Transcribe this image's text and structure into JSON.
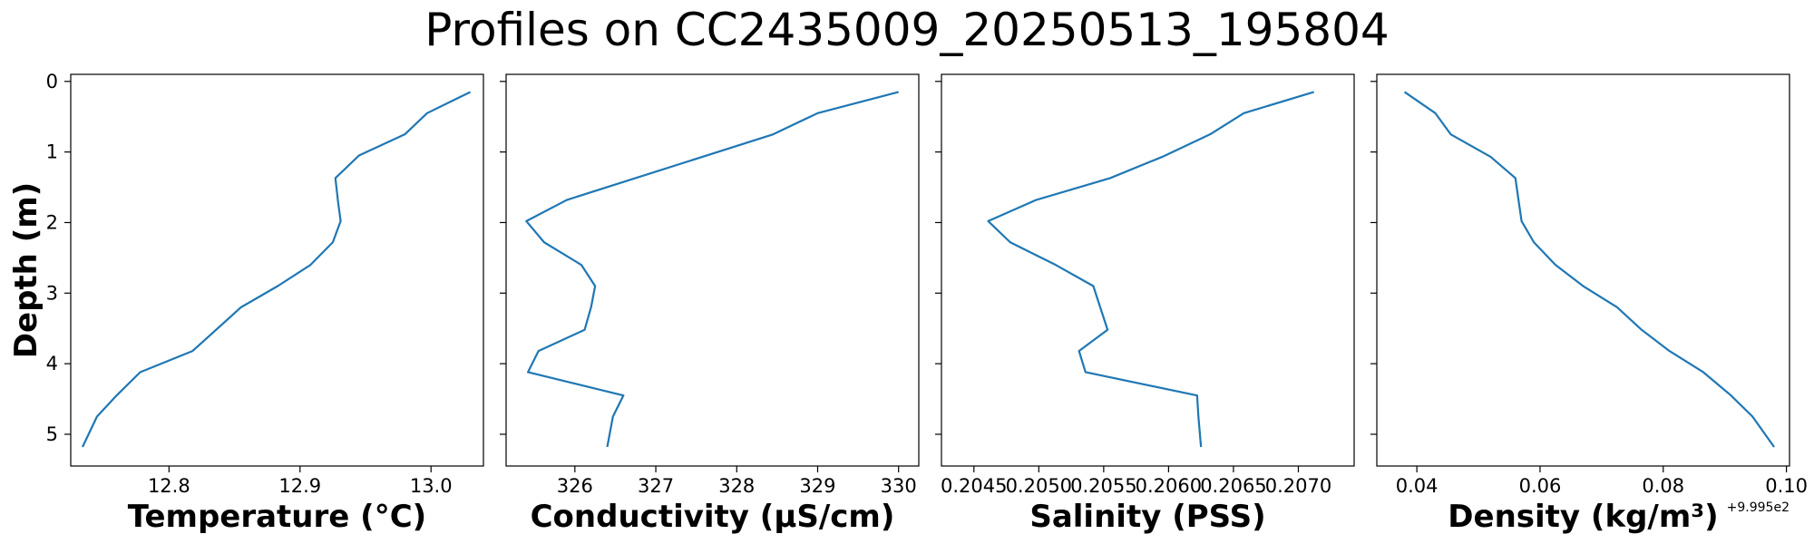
{
  "figure_title": "Profiles on CC2435009_20250513_195804",
  "colors": {
    "series": "#1f77b4",
    "axes": "#000000",
    "background": "#ffffff"
  },
  "chart_data": [
    {
      "type": "line",
      "xlabel": "Temperature (°C)",
      "ylabel": "Depth (m)",
      "xlim": [
        12.725,
        13.04
      ],
      "ylim": [
        5.45,
        -0.1
      ],
      "y_inverted": true,
      "xticks": [
        12.8,
        12.9,
        13.0
      ],
      "xtick_labels": [
        "12.8",
        "12.9",
        "13.0"
      ],
      "yticks": [
        0,
        1,
        2,
        3,
        4,
        5
      ],
      "ytick_labels": [
        "0",
        "1",
        "2",
        "3",
        "4",
        "5"
      ],
      "grid": false,
      "series": [
        {
          "x": [
            13.03,
            12.997,
            12.98,
            12.945,
            12.927,
            12.929,
            12.931,
            12.925,
            12.908,
            12.883,
            12.855,
            12.818,
            12.778,
            12.76,
            12.745,
            12.734
          ],
          "y": [
            0.15,
            0.45,
            0.75,
            1.05,
            1.37,
            1.7,
            1.98,
            2.28,
            2.6,
            2.9,
            3.2,
            3.82,
            4.12,
            4.45,
            4.75,
            5.18
          ]
        }
      ]
    },
    {
      "type": "line",
      "xlabel": "Conductivity (µS/cm)",
      "xlim": [
        325.15,
        330.25
      ],
      "ylim": [
        5.45,
        -0.1
      ],
      "y_inverted": true,
      "xticks": [
        326,
        327,
        328,
        329,
        330
      ],
      "xtick_labels": [
        "326",
        "327",
        "328",
        "329",
        "330"
      ],
      "yticks": [
        0,
        1,
        2,
        3,
        4,
        5
      ],
      "ytick_labels": [],
      "grid": false,
      "series": [
        {
          "x": [
            330.0,
            329.0,
            328.45,
            325.9,
            325.4,
            325.62,
            326.08,
            326.25,
            326.2,
            326.12,
            325.55,
            325.42,
            326.6,
            326.47,
            326.4
          ],
          "y": [
            0.15,
            0.45,
            0.75,
            1.68,
            1.98,
            2.28,
            2.6,
            2.9,
            3.2,
            3.52,
            3.82,
            4.12,
            4.45,
            4.75,
            5.18
          ]
        }
      ]
    },
    {
      "type": "line",
      "xlabel": "Salinity (PSS)",
      "xlim": [
        0.20425,
        0.20743
      ],
      "ylim": [
        5.45,
        -0.1
      ],
      "y_inverted": true,
      "xticks": [
        0.2045,
        0.205,
        0.2055,
        0.206,
        0.2065,
        0.207
      ],
      "xtick_labels": [
        "0.2045",
        "0.2050",
        "0.2055",
        "0.2060",
        "0.2065",
        "0.2070"
      ],
      "yticks": [
        0,
        1,
        2,
        3,
        4,
        5
      ],
      "ytick_labels": [],
      "grid": false,
      "series": [
        {
          "x": [
            0.20712,
            0.20658,
            0.20632,
            0.20595,
            0.20555,
            0.20498,
            0.20461,
            0.20478,
            0.20513,
            0.20542,
            0.20553,
            0.20531,
            0.20536,
            0.20622,
            0.20623,
            0.20625
          ],
          "y": [
            0.15,
            0.45,
            0.75,
            1.07,
            1.37,
            1.68,
            1.98,
            2.28,
            2.6,
            2.9,
            3.52,
            3.82,
            4.12,
            4.45,
            4.75,
            5.18
          ]
        }
      ]
    },
    {
      "type": "line",
      "xlabel": "Density (kg/m³)",
      "x_offset_label": "+9.995e2",
      "xlim": [
        0.0335,
        0.1005
      ],
      "ylim": [
        5.45,
        -0.1
      ],
      "y_inverted": true,
      "xticks": [
        0.04,
        0.06,
        0.08,
        0.1
      ],
      "xtick_labels": [
        "0.04",
        "0.06",
        "0.08",
        "0.10"
      ],
      "yticks": [
        0,
        1,
        2,
        3,
        4,
        5
      ],
      "ytick_labels": [],
      "grid": false,
      "series": [
        {
          "x": [
            0.038,
            0.043,
            0.0455,
            0.052,
            0.056,
            0.0565,
            0.057,
            0.059,
            0.0625,
            0.067,
            0.0725,
            0.0765,
            0.081,
            0.0865,
            0.091,
            0.0945,
            0.098
          ],
          "y": [
            0.15,
            0.45,
            0.75,
            1.07,
            1.37,
            1.68,
            1.98,
            2.28,
            2.6,
            2.9,
            3.2,
            3.52,
            3.82,
            4.12,
            4.45,
            4.75,
            5.18
          ]
        }
      ]
    }
  ]
}
